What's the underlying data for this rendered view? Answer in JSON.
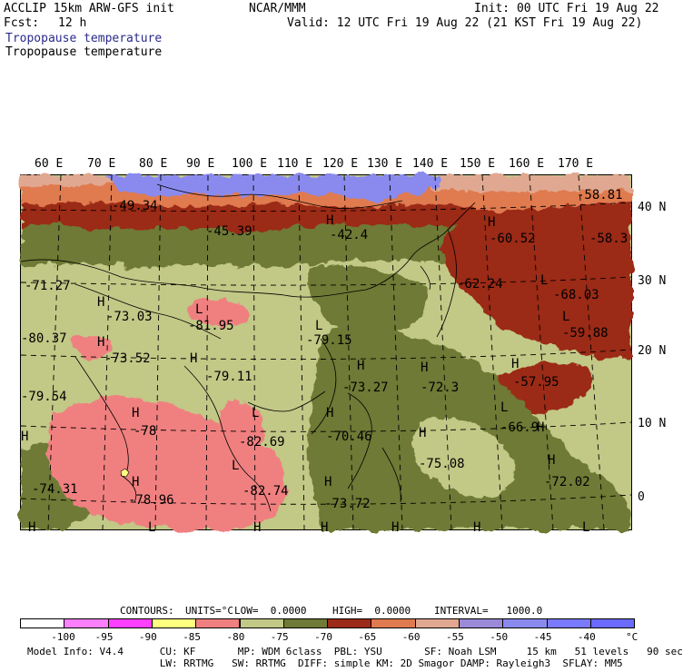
{
  "header": {
    "model_line": "ACCLIP 15km ARW-GFS init",
    "fcst_label": "Fcst:",
    "fcst_value": "12 h",
    "org": "NCAR/MMM",
    "init": "Init: 00 UTC Fri 19 Aug 22",
    "valid": "Valid: 12 UTC Fri 19 Aug 22 (21 KST Fri 19 Aug 22)",
    "field_title_1": "Tropopause temperature",
    "field_title_2": "Tropopause temperature"
  },
  "colors": {
    "title_blue": "#2a2a8c",
    "green_dark": "#6e7a36",
    "green_light": "#c2c886",
    "red_dark": "#9b2a18",
    "salmon": "#e07a50",
    "peach": "#e0a890",
    "blue": "#8a8aee",
    "pink": "#f08080"
  },
  "axes": {
    "longitudes": [
      "60 E",
      "70 E",
      "80 E",
      "90 E",
      "100 E",
      "110 E",
      "120 E",
      "130 E",
      "140 E",
      "150 E",
      "160 E",
      "170 E"
    ],
    "latitudes": [
      "40 N",
      "30 N",
      "20 N",
      "10 N",
      "0"
    ]
  },
  "labels": [
    {
      "t": "-49.34"
    },
    {
      "t": "-45.39"
    },
    {
      "t": "H"
    },
    {
      "t": "-42.4"
    },
    {
      "t": "-58.81"
    },
    {
      "t": "-60.52"
    },
    {
      "t": "-58.3"
    },
    {
      "t": "H"
    },
    {
      "t": "-71.27"
    },
    {
      "t": "-62.24"
    },
    {
      "t": "L"
    },
    {
      "t": "-68.03"
    },
    {
      "t": "H"
    },
    {
      "t": "-73.03"
    },
    {
      "t": "L"
    },
    {
      "t": "-81.95"
    },
    {
      "t": "L"
    },
    {
      "t": "-79.15"
    },
    {
      "t": "L"
    },
    {
      "t": "-59.88"
    },
    {
      "t": "-80.37"
    },
    {
      "t": "H"
    },
    {
      "t": "-73.52"
    },
    {
      "t": "H"
    },
    {
      "t": "-79.11"
    },
    {
      "t": "H"
    },
    {
      "t": "-73.27"
    },
    {
      "t": "H"
    },
    {
      "t": "-72.3"
    },
    {
      "t": "H"
    },
    {
      "t": "-57.95"
    },
    {
      "t": "-79.54"
    },
    {
      "t": "H"
    },
    {
      "t": "-78"
    },
    {
      "t": "L"
    },
    {
      "t": "-82.69"
    },
    {
      "t": "H"
    },
    {
      "t": "-70.46"
    },
    {
      "t": "L"
    },
    {
      "t": "-66.9"
    },
    {
      "t": "H"
    },
    {
      "t": "H"
    },
    {
      "t": "-75.08"
    },
    {
      "t": "H"
    },
    {
      "t": "-74.31"
    },
    {
      "t": "H"
    },
    {
      "t": "-78.96"
    },
    {
      "t": "L"
    },
    {
      "t": "-82.74"
    },
    {
      "t": "H"
    },
    {
      "t": "-73.72"
    },
    {
      "t": "-72.02"
    },
    {
      "t": "H"
    },
    {
      "t": "H"
    },
    {
      "t": "L"
    },
    {
      "t": "H"
    },
    {
      "t": "H"
    },
    {
      "t": "H"
    },
    {
      "t": "H"
    },
    {
      "t": "L"
    }
  ],
  "contours": {
    "label": "CONTOURS:",
    "units": "UNITS=°C",
    "low": "LOW=  0.0000",
    "high": "HIGH=  0.0000",
    "interval": "INTERVAL=   1000.0"
  },
  "colorbar": {
    "bins": [
      {
        "color": "#ffffff"
      },
      {
        "color": "#ff80ff"
      },
      {
        "color": "#ff40ff"
      },
      {
        "color": "#ffff80"
      },
      {
        "color": "#f08080"
      },
      {
        "color": "#c2c886"
      },
      {
        "color": "#6e7a36"
      },
      {
        "color": "#9b2a18"
      },
      {
        "color": "#e07a50"
      },
      {
        "color": "#e0a890"
      },
      {
        "color": "#9a8ad8"
      },
      {
        "color": "#8a8aee"
      },
      {
        "color": "#7a7aff"
      },
      {
        "color": "#6a6aff"
      }
    ],
    "ticks": [
      "-100",
      "-95",
      "-90",
      "-85",
      "-80",
      "-75",
      "-70",
      "-65",
      "-60",
      "-55",
      "-50",
      "-45",
      "-40"
    ],
    "unit": "°C"
  },
  "footer": {
    "line1": "Model Info: V4.4      CU: KF       MP: WDM 6class  PBL: YSU       SF: Noah LSM     15 km   51 levels   90 sec",
    "line2": "                      LW: RRTMG   SW: RRTMG  DIFF: simple KM: 2D Smagor DAMP: Rayleigh3  SFLAY: MM5"
  }
}
